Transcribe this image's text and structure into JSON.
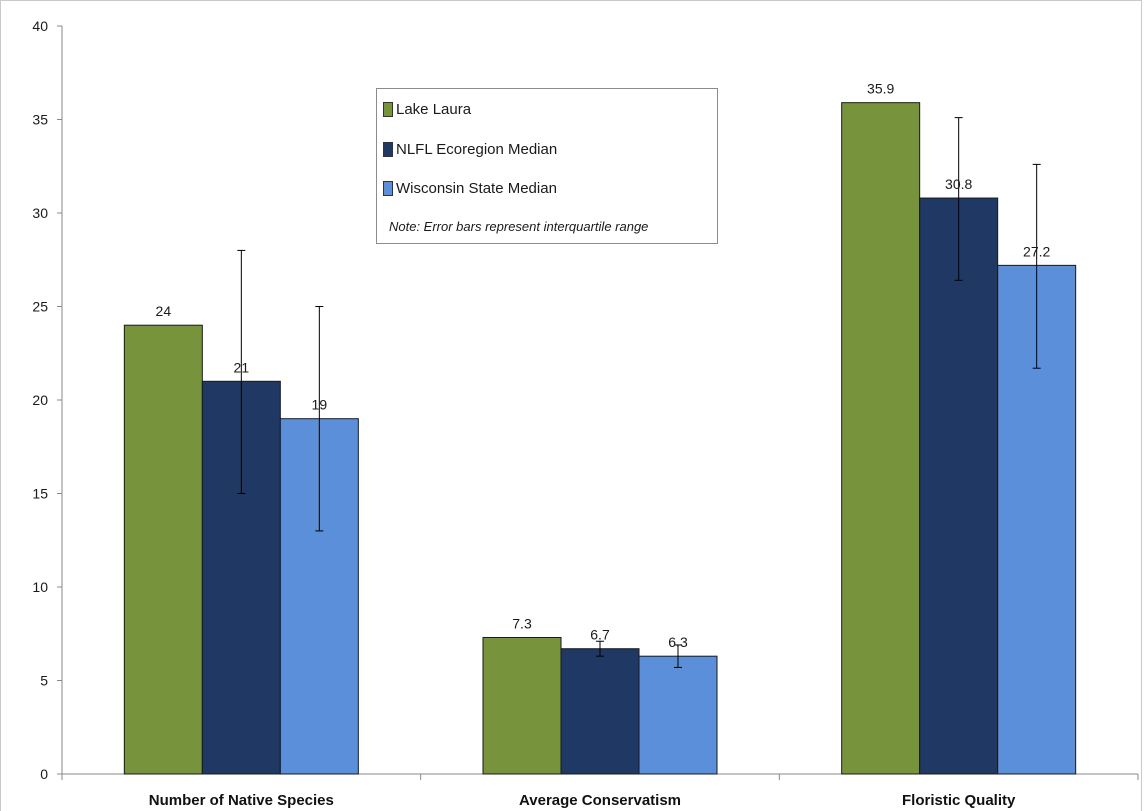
{
  "chart_data": {
    "type": "bar",
    "title": "",
    "xlabel": "",
    "ylabel": "",
    "ylim": [
      0,
      40
    ],
    "yticks": [
      0,
      5,
      10,
      15,
      20,
      25,
      30,
      35,
      40
    ],
    "grid": false,
    "legend_position": "top-center",
    "categories": [
      "Number of Native Species",
      "Average Conservatism",
      "Floristic Quality"
    ],
    "series": [
      {
        "name": "Lake Laura",
        "color": "#77933c",
        "values": [
          24,
          7.3,
          35.9
        ],
        "labels": [
          "24",
          "7.3",
          "35.9"
        ],
        "error": [
          null,
          null,
          null
        ]
      },
      {
        "name": "NLFL Ecoregion Median",
        "color": "#1f3864",
        "values": [
          21,
          6.7,
          30.8
        ],
        "labels": [
          "21",
          "6.7",
          "30.8"
        ],
        "error": [
          [
            15,
            28
          ],
          [
            6.3,
            7.1
          ],
          [
            26.4,
            35.1
          ]
        ]
      },
      {
        "name": "Wisconsin State Median",
        "color": "#5b8fd9",
        "values": [
          19,
          6.3,
          27.2
        ],
        "labels": [
          "19",
          "6.3",
          "27.2"
        ],
        "error": [
          [
            13,
            25
          ],
          [
            5.7,
            6.9
          ],
          [
            21.7,
            32.6
          ]
        ]
      }
    ],
    "note": "Note:  Error bars represent interquartile range"
  }
}
